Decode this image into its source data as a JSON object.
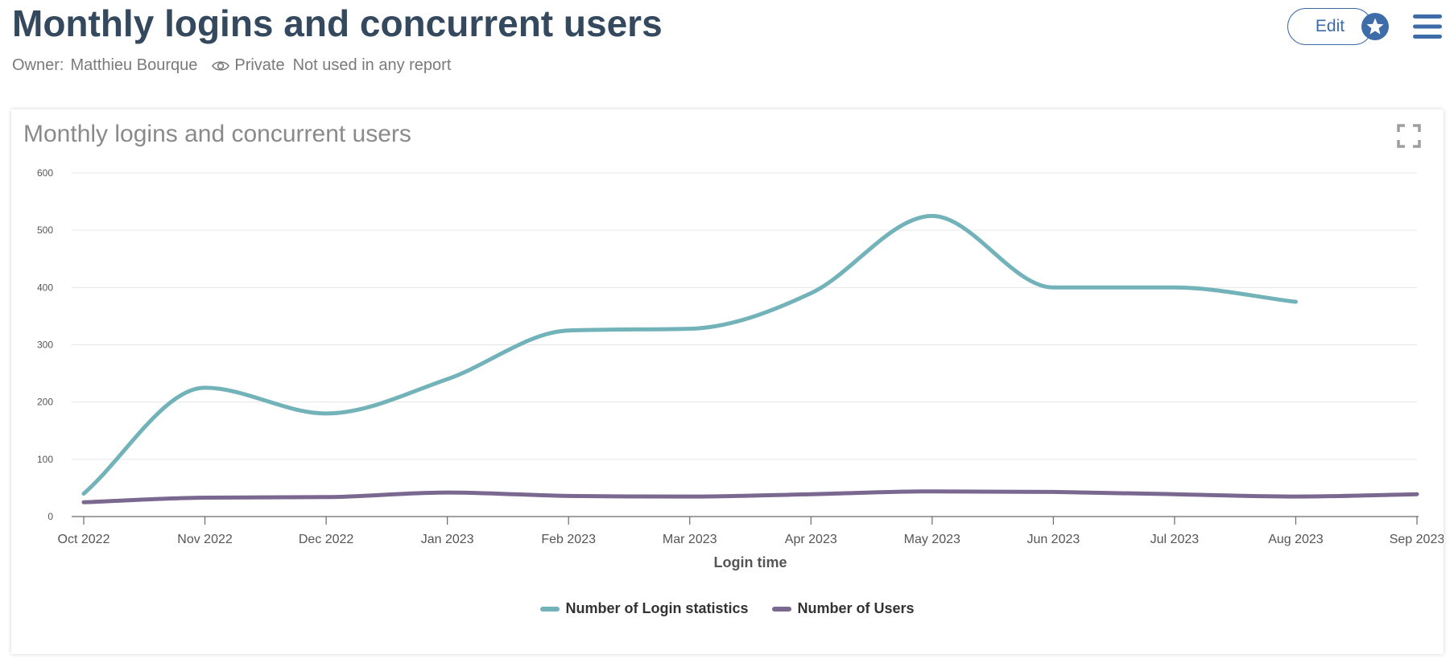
{
  "header": {
    "title": "Monthly logins and concurrent users",
    "owner_label": "Owner:",
    "owner_name": "Matthieu Bourque",
    "visibility": "Private",
    "usage": "Not used in any report",
    "edit_label": "Edit"
  },
  "icons": {
    "visibility": "eye-icon",
    "favorite": "star-icon",
    "menu": "hamburger-menu-icon",
    "expand": "fullscreen-icon"
  },
  "colors": {
    "title": "#34495e",
    "accent": "#3d6ca8",
    "series_logins": "#72b2b9",
    "series_users": "#7a6890"
  },
  "card": {
    "title": "Monthly logins and concurrent users"
  },
  "chart_data": {
    "type": "line",
    "title": "Monthly logins and concurrent users",
    "xlabel": "Login time",
    "ylabel": "",
    "categories": [
      "Oct 2022",
      "Nov 2022",
      "Dec 2022",
      "Jan 2023",
      "Feb 2023",
      "Mar 2023",
      "Apr 2023",
      "May 2023",
      "Jun 2023",
      "Jul 2023",
      "Aug 2023",
      "Sep 2023"
    ],
    "ylim": [
      0,
      600
    ],
    "yticks": [
      0,
      100,
      200,
      300,
      400,
      500,
      600
    ],
    "grid": true,
    "smooth": true,
    "legend_position": "bottom",
    "series": [
      {
        "name": "Number of Login statistics",
        "color": "#72b2b9",
        "values": [
          40,
          225,
          180,
          240,
          325,
          328,
          390,
          525,
          400,
          400,
          375,
          null
        ]
      },
      {
        "name": "Number of Users",
        "color": "#7a6890",
        "values": [
          25,
          33,
          34,
          42,
          36,
          35,
          39,
          44,
          43,
          39,
          35,
          39
        ]
      }
    ]
  }
}
